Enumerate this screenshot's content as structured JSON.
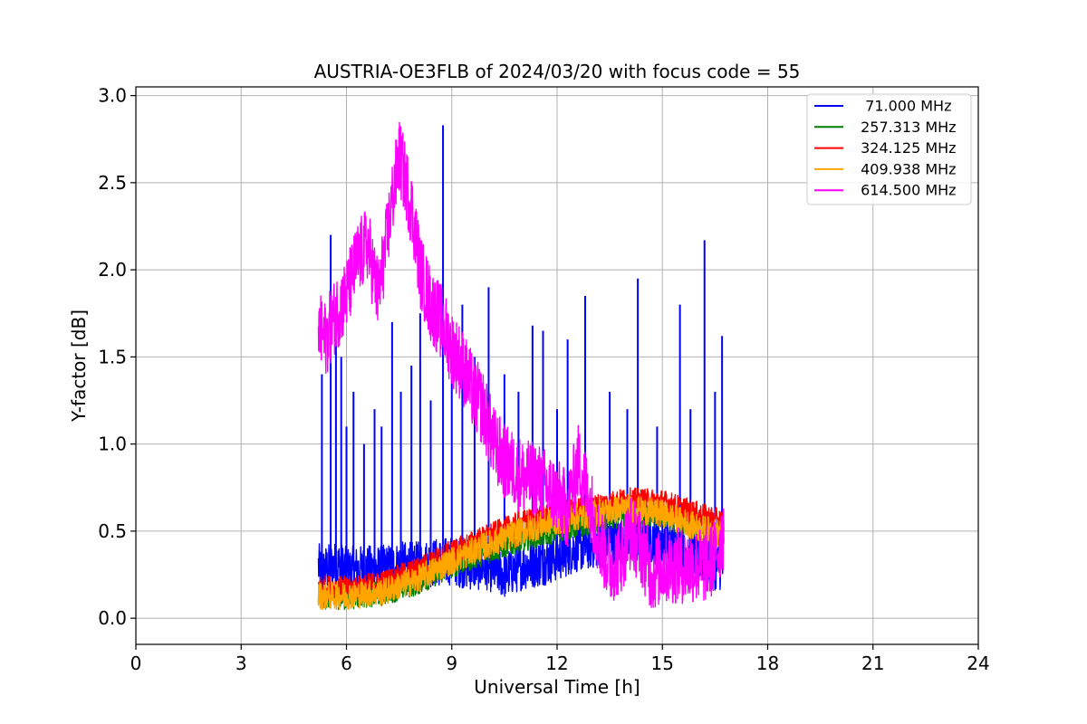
{
  "chart_data": {
    "type": "line",
    "title": "AUSTRIA-OE3FLB of 2024/03/20 with focus code = 55",
    "xlabel": "Universal Time [h]",
    "ylabel": "Y-factor [dB]",
    "xlim": [
      0,
      24
    ],
    "ylim": [
      -0.15,
      3.05
    ],
    "xticks": [
      0,
      3,
      6,
      9,
      12,
      15,
      18,
      21,
      24
    ],
    "xtick_labels": [
      "0",
      "3",
      "6",
      "9",
      "12",
      "15",
      "18",
      "21",
      "24"
    ],
    "yticks": [
      0.0,
      0.5,
      1.0,
      1.5,
      2.0,
      2.5,
      3.0
    ],
    "ytick_labels": [
      "0.0",
      "0.5",
      "1.0",
      "1.5",
      "2.0",
      "2.5",
      "3.0"
    ],
    "grid": true,
    "legend_position": "top-right",
    "series": [
      {
        "name": "  71.000 MHz",
        "color": "#0000ff",
        "x": [
          5.2,
          5.3,
          5.4,
          5.6,
          5.8,
          6.0,
          6.5,
          7.0,
          7.5,
          8.0,
          8.5,
          9.0,
          9.5,
          10.0,
          10.5,
          11.0,
          11.5,
          12.0,
          12.5,
          13.0,
          13.5,
          14.0,
          14.5,
          15.0,
          15.5,
          16.0,
          16.5,
          16.75
        ],
        "values": [
          0.3,
          0.25,
          0.28,
          0.3,
          0.3,
          0.27,
          0.28,
          0.28,
          0.3,
          0.3,
          0.32,
          0.33,
          0.3,
          0.3,
          0.25,
          0.3,
          0.32,
          0.35,
          0.4,
          0.42,
          0.45,
          0.45,
          0.45,
          0.45,
          0.4,
          0.35,
          0.3,
          0.3
        ],
        "spikes": [
          {
            "x": 5.3,
            "y": 1.4
          },
          {
            "x": 5.55,
            "y": 2.2
          },
          {
            "x": 5.7,
            "y": 1.6
          },
          {
            "x": 5.85,
            "y": 1.5
          },
          {
            "x": 6.0,
            "y": 1.1
          },
          {
            "x": 6.2,
            "y": 1.3
          },
          {
            "x": 6.5,
            "y": 1.0
          },
          {
            "x": 6.8,
            "y": 1.2
          },
          {
            "x": 7.0,
            "y": 1.1
          },
          {
            "x": 7.3,
            "y": 1.7
          },
          {
            "x": 7.55,
            "y": 1.3
          },
          {
            "x": 7.85,
            "y": 1.45
          },
          {
            "x": 8.1,
            "y": 1.75
          },
          {
            "x": 8.4,
            "y": 1.25
          },
          {
            "x": 8.75,
            "y": 2.83
          },
          {
            "x": 9.0,
            "y": 1.55
          },
          {
            "x": 9.3,
            "y": 1.8
          },
          {
            "x": 9.65,
            "y": 1.5
          },
          {
            "x": 10.05,
            "y": 1.9
          },
          {
            "x": 10.5,
            "y": 1.4
          },
          {
            "x": 10.9,
            "y": 1.3
          },
          {
            "x": 11.3,
            "y": 1.68
          },
          {
            "x": 11.6,
            "y": 1.65
          },
          {
            "x": 12.0,
            "y": 1.2
          },
          {
            "x": 12.3,
            "y": 1.6
          },
          {
            "x": 12.8,
            "y": 1.85
          },
          {
            "x": 13.5,
            "y": 1.3
          },
          {
            "x": 14.0,
            "y": 1.2
          },
          {
            "x": 14.3,
            "y": 1.95
          },
          {
            "x": 14.85,
            "y": 1.1
          },
          {
            "x": 15.5,
            "y": 1.8
          },
          {
            "x": 15.8,
            "y": 1.2
          },
          {
            "x": 16.2,
            "y": 2.17
          },
          {
            "x": 16.5,
            "y": 1.3
          },
          {
            "x": 16.7,
            "y": 1.62
          }
        ]
      },
      {
        "name": " 257.313 MHz",
        "color": "#008000",
        "x": [
          5.2,
          6.0,
          7.0,
          8.0,
          9.0,
          10.0,
          11.0,
          12.0,
          13.0,
          14.0,
          15.0,
          16.0,
          16.75
        ],
        "values": [
          0.12,
          0.12,
          0.14,
          0.2,
          0.3,
          0.38,
          0.45,
          0.5,
          0.55,
          0.6,
          0.58,
          0.52,
          0.45
        ]
      },
      {
        "name": " 324.125 MHz",
        "color": "#ff0000",
        "x": [
          5.2,
          6.0,
          7.0,
          8.0,
          9.0,
          10.0,
          11.0,
          12.0,
          13.0,
          14.0,
          15.0,
          16.0,
          16.75
        ],
        "values": [
          0.18,
          0.17,
          0.2,
          0.28,
          0.38,
          0.47,
          0.55,
          0.6,
          0.64,
          0.68,
          0.67,
          0.6,
          0.55
        ]
      },
      {
        "name": " 409.938 MHz",
        "color": "#ffa500",
        "x": [
          5.2,
          6.0,
          7.0,
          8.0,
          9.0,
          10.0,
          11.0,
          12.0,
          13.0,
          14.0,
          15.0,
          16.0,
          16.75
        ],
        "values": [
          0.13,
          0.13,
          0.15,
          0.22,
          0.33,
          0.42,
          0.5,
          0.56,
          0.6,
          0.63,
          0.6,
          0.52,
          0.48
        ]
      },
      {
        "name": " 614.500 MHz",
        "color": "#ff00ff",
        "x": [
          5.2,
          5.4,
          5.7,
          6.0,
          6.3,
          6.6,
          6.9,
          7.1,
          7.3,
          7.5,
          7.7,
          7.9,
          8.1,
          8.4,
          8.7,
          9.0,
          9.3,
          9.6,
          9.9,
          10.2,
          10.5,
          10.8,
          11.1,
          11.4,
          11.7,
          12.0,
          12.3,
          12.6,
          12.9,
          13.2,
          13.5,
          13.8,
          14.1,
          14.4,
          14.7,
          15.0,
          15.3,
          15.6,
          15.9,
          16.2,
          16.5,
          16.75
        ],
        "values": [
          1.65,
          1.6,
          1.75,
          1.85,
          2.05,
          2.15,
          1.85,
          2.1,
          2.4,
          2.65,
          2.5,
          2.3,
          2.0,
          1.8,
          1.7,
          1.55,
          1.45,
          1.3,
          1.2,
          1.0,
          0.9,
          0.85,
          0.8,
          0.8,
          0.75,
          0.7,
          0.62,
          0.9,
          0.7,
          0.45,
          0.3,
          0.35,
          0.5,
          0.4,
          0.25,
          0.3,
          0.3,
          0.3,
          0.3,
          0.3,
          0.35,
          0.5
        ]
      }
    ]
  }
}
